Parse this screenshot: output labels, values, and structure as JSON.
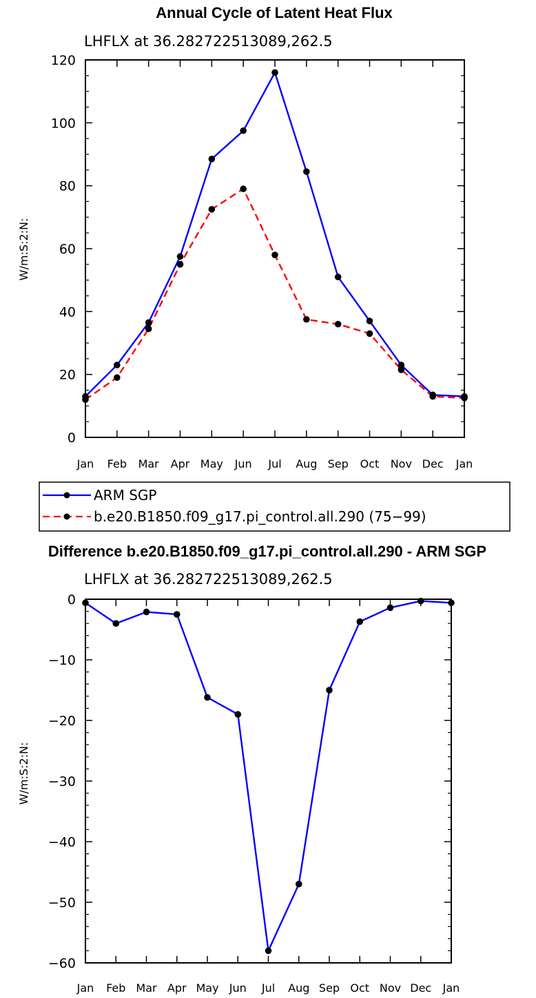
{
  "chart_data": [
    {
      "type": "line",
      "title": "Annual Cycle of Latent Heat Flux",
      "subtitle": "LHFLX at 36.282722513089,262.5",
      "ylabel": "W/m:S:2:N:",
      "ylim": [
        0,
        120
      ],
      "yticks": [
        0,
        20,
        40,
        60,
        80,
        100,
        120
      ],
      "categories": [
        "Jan",
        "Feb",
        "Mar",
        "Apr",
        "May",
        "Jun",
        "Jul",
        "Aug",
        "Sep",
        "Oct",
        "Nov",
        "Dec",
        "Jan"
      ],
      "series": [
        {
          "name": "ARM SGP",
          "color": "#0000ff",
          "dash": "solid",
          "values": [
            13,
            23,
            36.5,
            57.5,
            88.5,
            97.5,
            116,
            84.5,
            51,
            37,
            23,
            13.5,
            13
          ]
        },
        {
          "name": "b.e20.B1850.f09_g17.pi_control.all.290 (75−99)",
          "color": "#ff0000",
          "dash": "dashed",
          "values": [
            12,
            19,
            34.5,
            55,
            72.5,
            79,
            58,
            37.5,
            36,
            33,
            21.5,
            13,
            12.5
          ]
        }
      ],
      "legend": "below"
    },
    {
      "type": "line",
      "title": "Difference b.e20.B1850.f09_g17.pi_control.all.290 - ARM SGP",
      "subtitle": "LHFLX at 36.282722513089,262.5",
      "ylabel": "W/m:S:2:N:",
      "ylim": [
        -60,
        0
      ],
      "yticks": [
        -60,
        -50,
        -40,
        -30,
        -20,
        -10,
        0
      ],
      "categories": [
        "Jan",
        "Feb",
        "Mar",
        "Apr",
        "May",
        "Jun",
        "Jul",
        "Aug",
        "Sep",
        "Oct",
        "Nov",
        "Dec",
        "Jan"
      ],
      "series": [
        {
          "color": "#0000ff",
          "dash": "solid",
          "values": [
            -0.6,
            -4,
            -2.1,
            -2.5,
            -16.2,
            -19,
            -58,
            -47,
            -15,
            -3.7,
            -1.4,
            -0.3,
            -0.6
          ]
        }
      ]
    }
  ]
}
